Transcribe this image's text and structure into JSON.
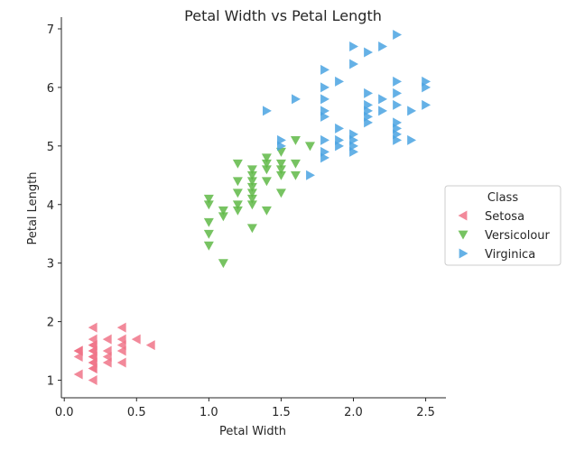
{
  "chart_data": {
    "type": "scatter",
    "title": "Petal Width vs Petal Length",
    "xlabel": "Petal Width",
    "ylabel": "Petal Length",
    "xlim": [
      -0.02,
      2.64
    ],
    "ylim": [
      0.7,
      7.2
    ],
    "xticks": [
      0.0,
      0.5,
      1.0,
      1.5,
      2.0,
      2.5
    ],
    "xtick_labels": [
      "0.0",
      "0.5",
      "1.0",
      "1.5",
      "2.0",
      "2.5"
    ],
    "yticks": [
      1,
      2,
      3,
      4,
      5,
      6,
      7
    ],
    "ytick_labels": [
      "1",
      "2",
      "3",
      "4",
      "5",
      "6",
      "7"
    ],
    "grid": false,
    "legend": {
      "title": "Class",
      "placement": "right"
    },
    "series": [
      {
        "name": "Setosa",
        "marker": "triangle-left",
        "color": "#f07488",
        "points": [
          [
            0.1,
            1.1
          ],
          [
            0.1,
            1.4
          ],
          [
            0.1,
            1.5
          ],
          [
            0.1,
            1.5
          ],
          [
            0.1,
            1.5
          ],
          [
            0.2,
            1.0
          ],
          [
            0.2,
            1.2
          ],
          [
            0.2,
            1.2
          ],
          [
            0.2,
            1.3
          ],
          [
            0.2,
            1.3
          ],
          [
            0.2,
            1.4
          ],
          [
            0.2,
            1.4
          ],
          [
            0.2,
            1.5
          ],
          [
            0.2,
            1.5
          ],
          [
            0.2,
            1.6
          ],
          [
            0.2,
            1.6
          ],
          [
            0.2,
            1.7
          ],
          [
            0.2,
            1.9
          ],
          [
            0.3,
            1.3
          ],
          [
            0.3,
            1.4
          ],
          [
            0.3,
            1.5
          ],
          [
            0.3,
            1.7
          ],
          [
            0.4,
            1.3
          ],
          [
            0.4,
            1.5
          ],
          [
            0.4,
            1.6
          ],
          [
            0.4,
            1.7
          ],
          [
            0.4,
            1.9
          ],
          [
            0.5,
            1.7
          ],
          [
            0.6,
            1.6
          ]
        ]
      },
      {
        "name": "Versicolour",
        "marker": "triangle-down",
        "color": "#5fb847",
        "points": [
          [
            1.0,
            3.3
          ],
          [
            1.0,
            3.5
          ],
          [
            1.0,
            3.7
          ],
          [
            1.0,
            4.0
          ],
          [
            1.0,
            4.1
          ],
          [
            1.1,
            3.0
          ],
          [
            1.1,
            3.8
          ],
          [
            1.1,
            3.9
          ],
          [
            1.2,
            3.9
          ],
          [
            1.2,
            4.0
          ],
          [
            1.2,
            4.2
          ],
          [
            1.2,
            4.4
          ],
          [
            1.2,
            4.7
          ],
          [
            1.3,
            3.6
          ],
          [
            1.3,
            4.0
          ],
          [
            1.3,
            4.1
          ],
          [
            1.3,
            4.2
          ],
          [
            1.3,
            4.3
          ],
          [
            1.3,
            4.4
          ],
          [
            1.3,
            4.5
          ],
          [
            1.3,
            4.6
          ],
          [
            1.4,
            3.9
          ],
          [
            1.4,
            4.4
          ],
          [
            1.4,
            4.6
          ],
          [
            1.4,
            4.7
          ],
          [
            1.4,
            4.8
          ],
          [
            1.5,
            4.2
          ],
          [
            1.5,
            4.5
          ],
          [
            1.5,
            4.6
          ],
          [
            1.5,
            4.7
          ],
          [
            1.5,
            4.9
          ],
          [
            1.6,
            4.5
          ],
          [
            1.6,
            4.7
          ],
          [
            1.6,
            5.1
          ],
          [
            1.7,
            5.0
          ]
        ]
      },
      {
        "name": "Virginica",
        "marker": "triangle-right",
        "color": "#4aa3e2",
        "points": [
          [
            1.4,
            5.6
          ],
          [
            1.5,
            5.0
          ],
          [
            1.5,
            5.1
          ],
          [
            1.6,
            5.8
          ],
          [
            1.7,
            4.5
          ],
          [
            1.8,
            4.8
          ],
          [
            1.8,
            4.9
          ],
          [
            1.8,
            5.1
          ],
          [
            1.8,
            5.5
          ],
          [
            1.8,
            5.6
          ],
          [
            1.8,
            5.8
          ],
          [
            1.8,
            6.0
          ],
          [
            1.8,
            6.3
          ],
          [
            1.9,
            5.0
          ],
          [
            1.9,
            5.1
          ],
          [
            1.9,
            5.3
          ],
          [
            1.9,
            6.1
          ],
          [
            2.0,
            4.9
          ],
          [
            2.0,
            5.0
          ],
          [
            2.0,
            5.1
          ],
          [
            2.0,
            5.2
          ],
          [
            2.0,
            6.4
          ],
          [
            2.0,
            6.7
          ],
          [
            2.1,
            5.4
          ],
          [
            2.1,
            5.5
          ],
          [
            2.1,
            5.6
          ],
          [
            2.1,
            5.7
          ],
          [
            2.1,
            5.9
          ],
          [
            2.1,
            6.6
          ],
          [
            2.2,
            5.6
          ],
          [
            2.2,
            5.8
          ],
          [
            2.2,
            6.7
          ],
          [
            2.3,
            5.1
          ],
          [
            2.3,
            5.2
          ],
          [
            2.3,
            5.3
          ],
          [
            2.3,
            5.4
          ],
          [
            2.3,
            5.7
          ],
          [
            2.3,
            5.9
          ],
          [
            2.3,
            6.1
          ],
          [
            2.3,
            6.9
          ],
          [
            2.4,
            5.1
          ],
          [
            2.4,
            5.6
          ],
          [
            2.5,
            5.7
          ],
          [
            2.5,
            6.0
          ],
          [
            2.5,
            6.1
          ]
        ]
      }
    ]
  }
}
